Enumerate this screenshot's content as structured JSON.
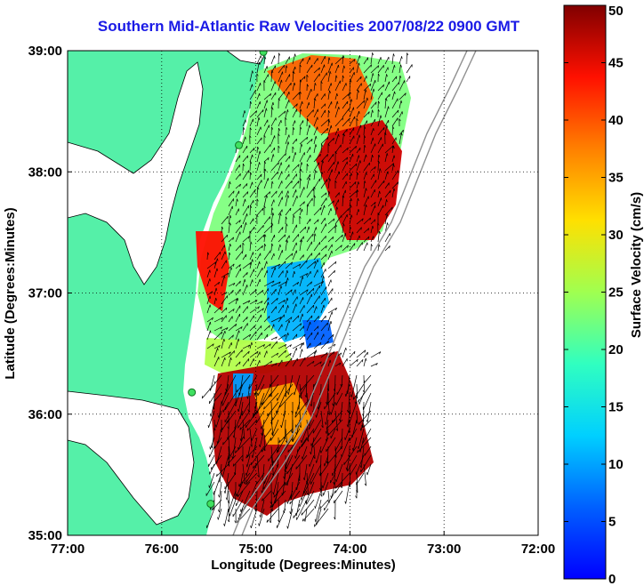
{
  "title": "Southern Mid-Atlantic Raw Velocities 2007/08/22 0900 GMT",
  "x_axis": {
    "label": "Longitude (Degrees:Minutes)",
    "ticks": [
      "77:00",
      "76:00",
      "75:00",
      "74:00",
      "73:00",
      "72:00"
    ]
  },
  "y_axis": {
    "label": "Latitude (Degrees:Minutes)",
    "ticks": [
      "39:00",
      "38:00",
      "37:00",
      "36:00",
      "35:00"
    ]
  },
  "colorbar": {
    "label": "Surface Velocity (cm/s)",
    "ticks": [
      "50",
      "45",
      "40",
      "35",
      "30",
      "25",
      "20",
      "15",
      "10",
      "5",
      "0"
    ],
    "range": [
      0,
      50
    ],
    "colormap": "jet"
  },
  "map": {
    "extent": {
      "lon": [
        -77,
        -72
      ],
      "lat": [
        35,
        39
      ]
    },
    "land_color": "#55f0a8",
    "water_color": "#ffffff",
    "grid": "dotted",
    "stations": [
      {
        "lon": -74.92,
        "lat": 38.99
      },
      {
        "lon": -75.18,
        "lat": 38.22
      },
      {
        "lon": -75.68,
        "lat": 36.18
      },
      {
        "lon": -75.48,
        "lat": 35.26
      }
    ]
  }
}
